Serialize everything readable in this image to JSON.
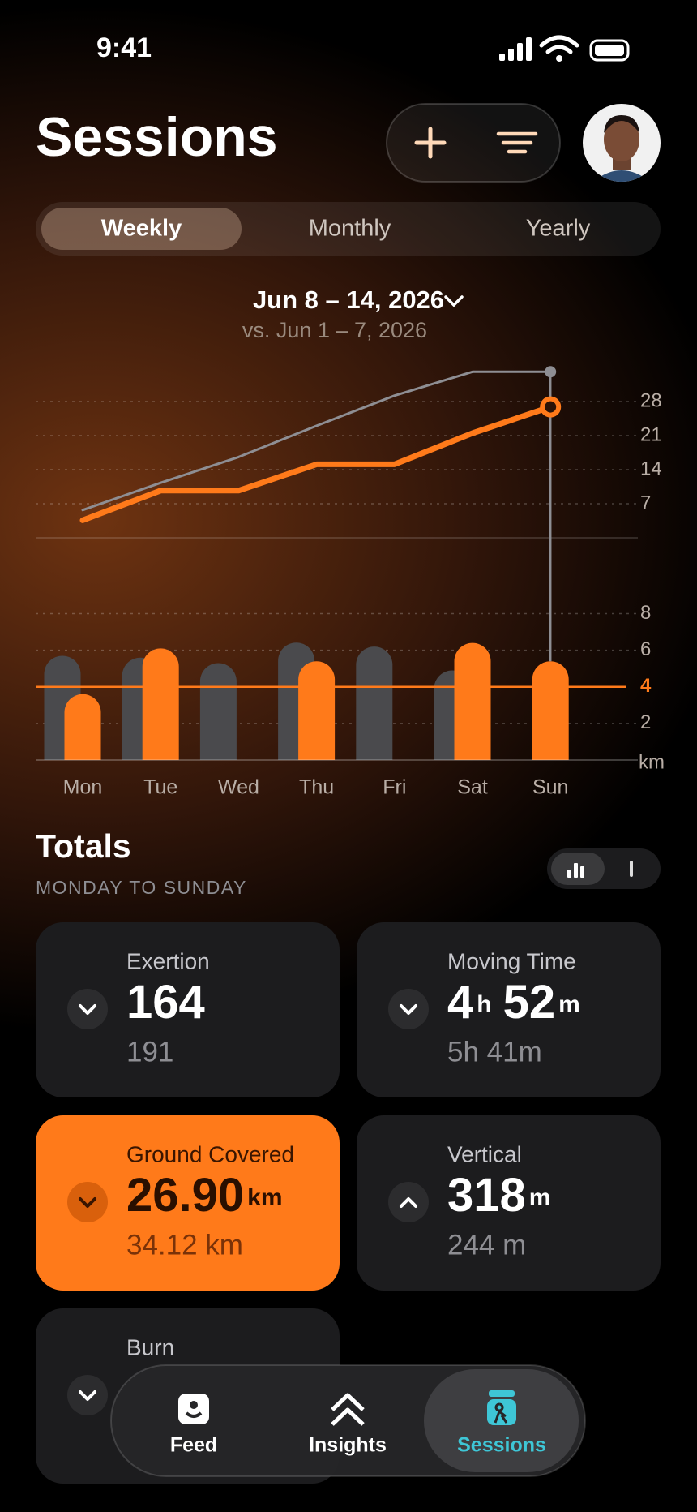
{
  "status_bar": {
    "time": "9:41"
  },
  "header": {
    "title": "Sessions"
  },
  "tabs": {
    "items": [
      "Weekly",
      "Monthly",
      "Yearly"
    ],
    "active": 0
  },
  "period": {
    "range": "Jun 8 – 14, 2026",
    "comparison": "vs. Jun 1 – 7, 2026"
  },
  "chart_data": [
    {
      "type": "line",
      "ylim": [
        0,
        35
      ],
      "yticks": [
        7,
        14,
        21,
        28
      ],
      "grid": true,
      "series": [
        {
          "color": "#8e8e93",
          "values": [
            5.7,
            11.3,
            16.6,
            23.02,
            29.22,
            34.12,
            34.12
          ]
        },
        {
          "color": "#ff7a1a",
          "values": [
            3.6,
            9.7,
            9.7,
            15.1,
            15.1,
            21.5,
            26.9
          ]
        }
      ]
    },
    {
      "type": "bar",
      "categories": [
        "Mon",
        "Tue",
        "Wed",
        "Thu",
        "Fri",
        "Sat",
        "Sun"
      ],
      "ylim": [
        0,
        9
      ],
      "yticks": [
        2,
        4,
        6,
        8
      ],
      "y_unit": "km",
      "grid": true,
      "reference_line": 4,
      "reference_color": "#ff7a1a",
      "series": [
        {
          "color": "#4a4a4d",
          "values": [
            5.7,
            5.6,
            5.3,
            6.42,
            6.2,
            4.9,
            null
          ]
        },
        {
          "color": "#ff7a1a",
          "values": [
            3.6,
            6.1,
            null,
            5.4,
            null,
            6.4,
            5.4
          ]
        }
      ]
    }
  ],
  "totals": {
    "title": "Totals",
    "subtitle": "MONDAY TO SUNDAY",
    "cards": [
      {
        "label": "Exertion",
        "value": [
          {
            "num": "164"
          }
        ],
        "previous": "191",
        "trend": "down",
        "active": false
      },
      {
        "label": "Moving Time",
        "value": [
          {
            "num": "4",
            "unit": "h"
          },
          {
            "num": "52",
            "unit": "m"
          }
        ],
        "previous": "5h 41m",
        "trend": "down",
        "active": false
      },
      {
        "label": "Ground Covered",
        "value": [
          {
            "num": "26.90",
            "unit": "km"
          }
        ],
        "previous": "34.12 km",
        "trend": "down",
        "active": true
      },
      {
        "label": "Vertical",
        "value": [
          {
            "num": "318",
            "unit": "m"
          }
        ],
        "previous": "244 m",
        "trend": "up",
        "active": false
      },
      {
        "label": "Burn",
        "trend": "down",
        "active": false
      }
    ]
  },
  "nav": {
    "items": [
      "Feed",
      "Insights",
      "Sessions"
    ],
    "active": 2
  }
}
